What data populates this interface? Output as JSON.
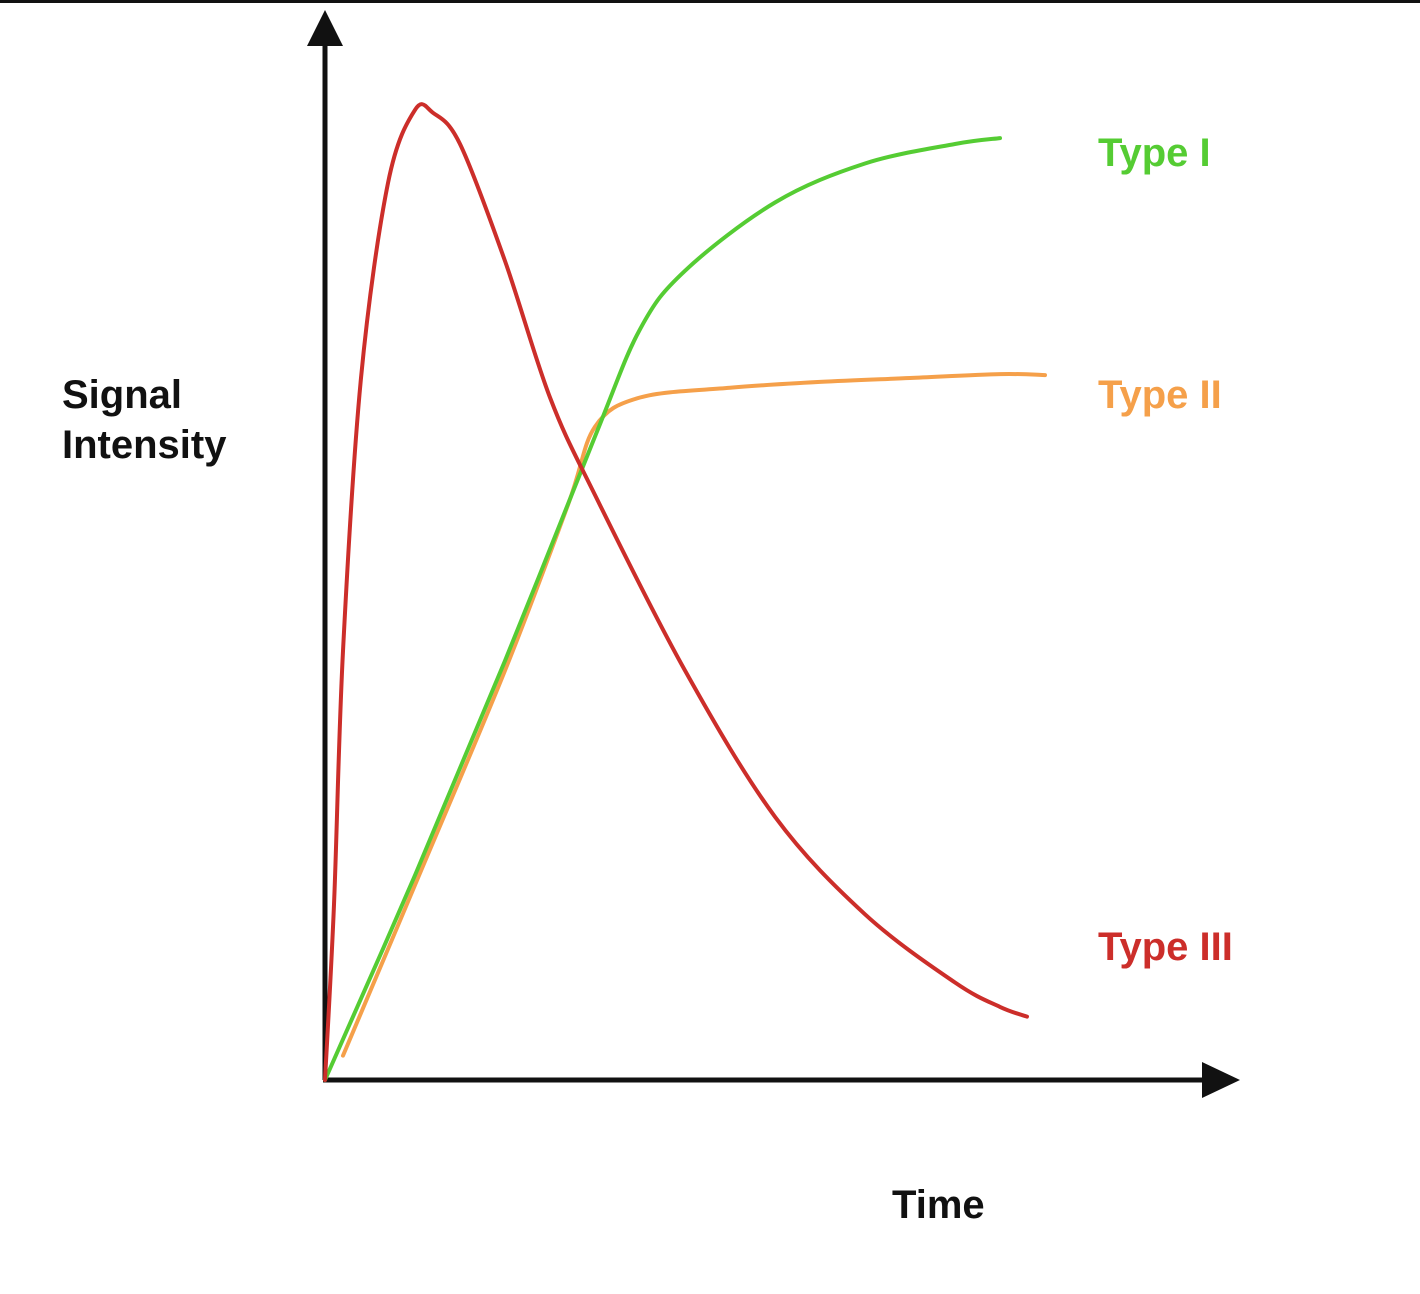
{
  "chart_data": {
    "type": "line",
    "xlabel": "Time",
    "ylabel_lines": [
      "Signal",
      "Intensity"
    ],
    "axis_range": {
      "x": [
        0,
        100
      ],
      "y": [
        0,
        100
      ]
    },
    "grid": false,
    "legend": "inline-right",
    "series": [
      {
        "name": "Type I",
        "color": "#55cc33",
        "points": [
          [
            0,
            0
          ],
          [
            10,
            21
          ],
          [
            20,
            43
          ],
          [
            30,
            66
          ],
          [
            35,
            77
          ],
          [
            40,
            83
          ],
          [
            50,
            90
          ],
          [
            60,
            94
          ],
          [
            70,
            96
          ],
          [
            75,
            96.6
          ]
        ]
      },
      {
        "name": "Type II",
        "color": "#f5a04a",
        "points": [
          [
            2,
            2.5
          ],
          [
            10,
            20
          ],
          [
            20,
            42
          ],
          [
            27,
            59
          ],
          [
            30,
            67
          ],
          [
            35,
            70
          ],
          [
            45,
            71
          ],
          [
            55,
            71.6
          ],
          [
            65,
            72
          ],
          [
            75,
            72.4
          ],
          [
            80,
            72.3
          ]
        ]
      },
      {
        "name": "Type III",
        "color": "#cc2e2a",
        "points": [
          [
            0,
            0
          ],
          [
            1,
            18
          ],
          [
            2,
            44
          ],
          [
            4,
            72
          ],
          [
            7,
            92
          ],
          [
            10,
            99.5
          ],
          [
            12,
            99.2
          ],
          [
            15,
            96
          ],
          [
            20,
            84
          ],
          [
            25,
            70
          ],
          [
            30,
            60
          ],
          [
            40,
            42
          ],
          [
            50,
            27
          ],
          [
            60,
            17
          ],
          [
            70,
            10
          ],
          [
            75,
            7.5
          ],
          [
            78,
            6.5
          ]
        ]
      }
    ]
  }
}
